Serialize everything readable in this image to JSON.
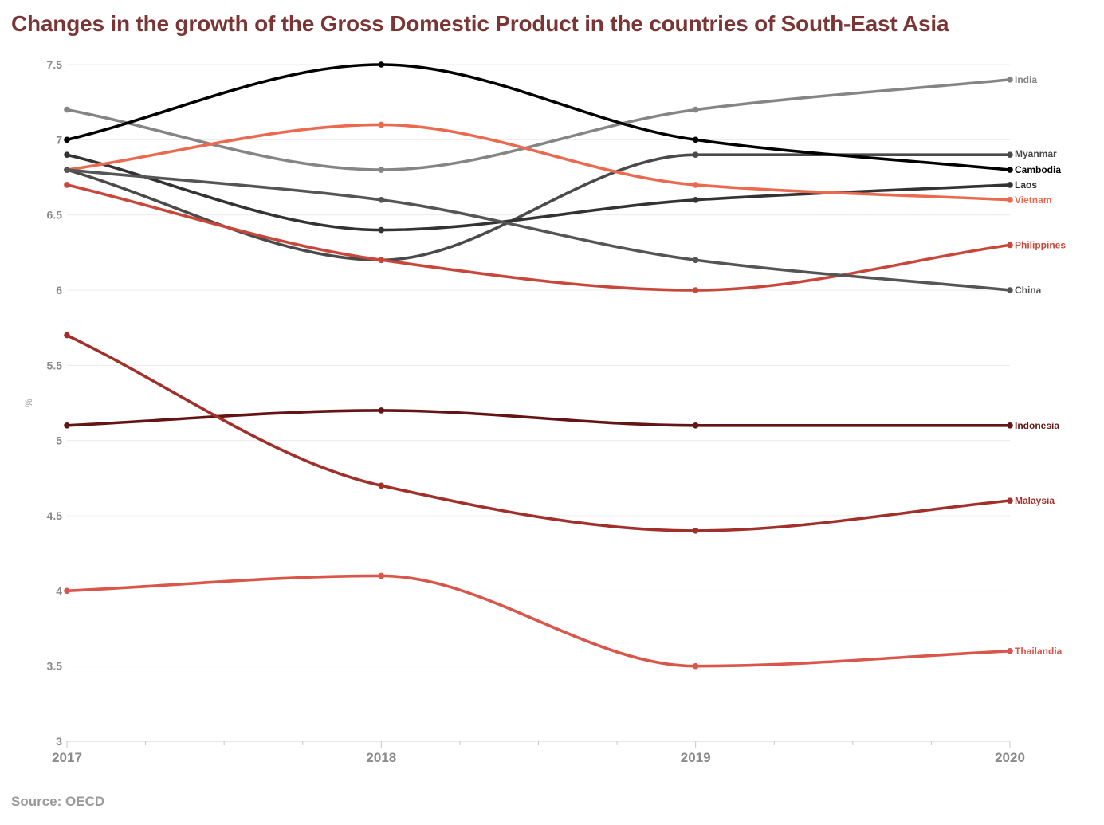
{
  "chart_data": {
    "type": "line",
    "title": "Changes in the growth of the Gross Domestic Product in the countries of South-East Asia",
    "source": "Source: OECD",
    "xlabel": "",
    "ylabel": "%",
    "x": [
      "2017",
      "2018",
      "2019",
      "2020"
    ],
    "ylim": [
      3,
      7.5
    ],
    "yticks": [
      "3",
      "3.5",
      "4",
      "4.5",
      "5",
      "5.5",
      "6",
      "6.5",
      "7",
      "7.5"
    ],
    "grid": true,
    "legend": "direct labels at line ends (right)",
    "series": [
      {
        "name": "India",
        "color": "#858585",
        "values": [
          7.2,
          6.8,
          7.2,
          7.4
        ]
      },
      {
        "name": "Myanmar",
        "color": "#4a4a4a",
        "values": [
          6.8,
          6.2,
          6.9,
          6.9
        ]
      },
      {
        "name": "Cambodia",
        "color": "#000000",
        "values": [
          7.0,
          7.5,
          7.0,
          6.8
        ]
      },
      {
        "name": "Laos",
        "color": "#333333",
        "values": [
          6.9,
          6.4,
          6.6,
          6.7
        ]
      },
      {
        "name": "Vietnam",
        "color": "#ea6a50",
        "values": [
          6.8,
          7.1,
          6.7,
          6.6
        ]
      },
      {
        "name": "Philippines",
        "color": "#c9473a",
        "values": [
          6.7,
          6.2,
          6.0,
          6.3
        ]
      },
      {
        "name": "China",
        "color": "#555555",
        "values": [
          6.8,
          6.6,
          6.2,
          6.0
        ]
      },
      {
        "name": "Indonesia",
        "color": "#641414",
        "values": [
          5.1,
          5.2,
          5.1,
          5.1
        ]
      },
      {
        "name": "Malaysia",
        "color": "#a1302a",
        "values": [
          5.7,
          4.7,
          4.4,
          4.6
        ]
      },
      {
        "name": "Thailandia",
        "color": "#d9564a",
        "values": [
          4.0,
          4.1,
          3.5,
          3.6
        ]
      }
    ]
  }
}
